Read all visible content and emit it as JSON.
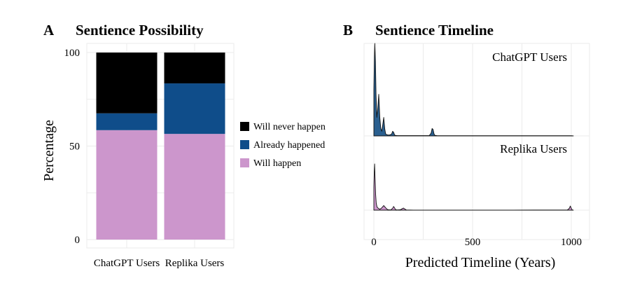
{
  "colors": {
    "will_never_happen": "#000000",
    "already_happened": "#0f4d8a",
    "will_happen": "#cc96cc",
    "chatgpt_density": "#2a5f8f",
    "replika_density": "#cc96cc"
  },
  "chart_data": [
    {
      "type": "bar",
      "panel_letter": "A",
      "title": "Sentience Possibility",
      "xlabel": "",
      "ylabel": "Percentage",
      "ylim": [
        0,
        100
      ],
      "yticks": [
        "0",
        "50",
        "100"
      ],
      "stacked": true,
      "categories": [
        "ChatGPT Users",
        "Replika Users"
      ],
      "series": [
        {
          "name": "Will happen",
          "values": [
            58.5,
            56.5
          ]
        },
        {
          "name": "Already happened",
          "values": [
            9,
            27
          ]
        },
        {
          "name": "Will never happen",
          "values": [
            32.5,
            16.5
          ]
        }
      ],
      "legend": [
        "Will never happen",
        "Already happened",
        "Will happen"
      ],
      "legend_position": "right",
      "grid": true
    },
    {
      "type": "area",
      "panel_letter": "B",
      "title": "Sentience Timeline",
      "xlabel": "Predicted Timeline (Years)",
      "ylabel": "",
      "xlim": [
        0,
        1000
      ],
      "xticks": [
        "0",
        "500",
        "1000"
      ],
      "grid": true,
      "facets": [
        {
          "label": "ChatGPT Users",
          "x": [
            0,
            3,
            5,
            8,
            11,
            15,
            20,
            25,
            30,
            35,
            40,
            45,
            50,
            55,
            60,
            70,
            80,
            90,
            95,
            100,
            105,
            110,
            120,
            200,
            280,
            290,
            295,
            300,
            305,
            310,
            320,
            400,
            1000
          ],
          "y": [
            0.5,
            0.85,
            1.0,
            0.8,
            0.45,
            0.2,
            0.3,
            0.45,
            0.2,
            0.08,
            0.05,
            0.12,
            0.2,
            0.08,
            0.02,
            0.01,
            0.01,
            0.02,
            0.05,
            0.04,
            0.01,
            0.005,
            0.003,
            0.003,
            0.003,
            0.03,
            0.08,
            0.07,
            0.02,
            0.005,
            0.003,
            0.002,
            0.002
          ]
        },
        {
          "label": "Replika Users",
          "x": [
            0,
            2,
            4,
            6,
            9,
            12,
            16,
            20,
            30,
            40,
            50,
            60,
            70,
            85,
            95,
            100,
            105,
            110,
            120,
            135,
            145,
            150,
            155,
            165,
            200,
            400,
            700,
            980,
            990,
            995,
            1000,
            1005,
            1010
          ],
          "y": [
            0.5,
            0.85,
            1.0,
            0.7,
            0.35,
            0.15,
            0.07,
            0.05,
            0.02,
            0.05,
            0.1,
            0.05,
            0.01,
            0.005,
            0.04,
            0.08,
            0.05,
            0.01,
            0.005,
            0.01,
            0.035,
            0.045,
            0.03,
            0.005,
            0.002,
            0.002,
            0.002,
            0.005,
            0.04,
            0.09,
            0.04,
            0.005,
            0.002
          ]
        }
      ]
    }
  ]
}
